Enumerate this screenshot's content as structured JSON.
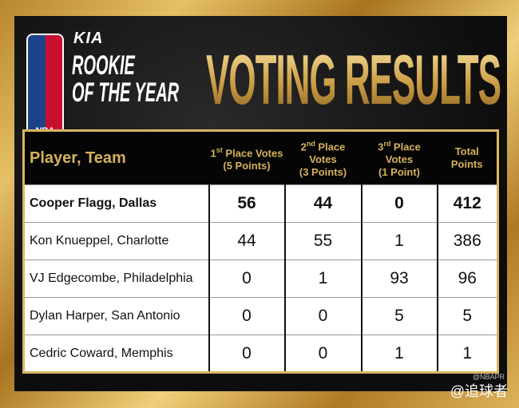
{
  "header": {
    "brand": "KIA",
    "award": [
      "ROOKIE",
      "OF THE YEAR"
    ],
    "league": "NBA",
    "title": "VOTING RESULTS"
  },
  "table": {
    "columns": [
      {
        "label": "Player, Team"
      },
      {
        "ordinal": "1",
        "suffix": "st",
        "label": " Place Votes",
        "sub": "(5 Points)"
      },
      {
        "ordinal": "2",
        "suffix": "nd",
        "label": " Place Votes",
        "sub": "(3 Points)"
      },
      {
        "ordinal": "3",
        "suffix": "rd",
        "label": " Place Votes",
        "sub": "(1 Point)"
      },
      {
        "label": "Total",
        "sub": "Points"
      }
    ],
    "rows": [
      [
        "Cooper Flagg, Dallas",
        "56",
        "44",
        "0",
        "412"
      ],
      [
        "Kon Knueppel, Charlotte",
        "44",
        "55",
        "1",
        "386"
      ],
      [
        "VJ Edgecombe, Philadelphia",
        "0",
        "1",
        "93",
        "96"
      ],
      [
        "Dylan Harper, San Antonio",
        "0",
        "0",
        "5",
        "5"
      ],
      [
        "Cedric Coward, Memphis",
        "0",
        "0",
        "1",
        "1"
      ]
    ]
  },
  "watermark": {
    "credit": "@NBAPR",
    "text": "@追球者"
  },
  "colors": {
    "gold": "#d5b15c",
    "nba_blue": "#1d428a",
    "nba_red": "#c8102e"
  }
}
